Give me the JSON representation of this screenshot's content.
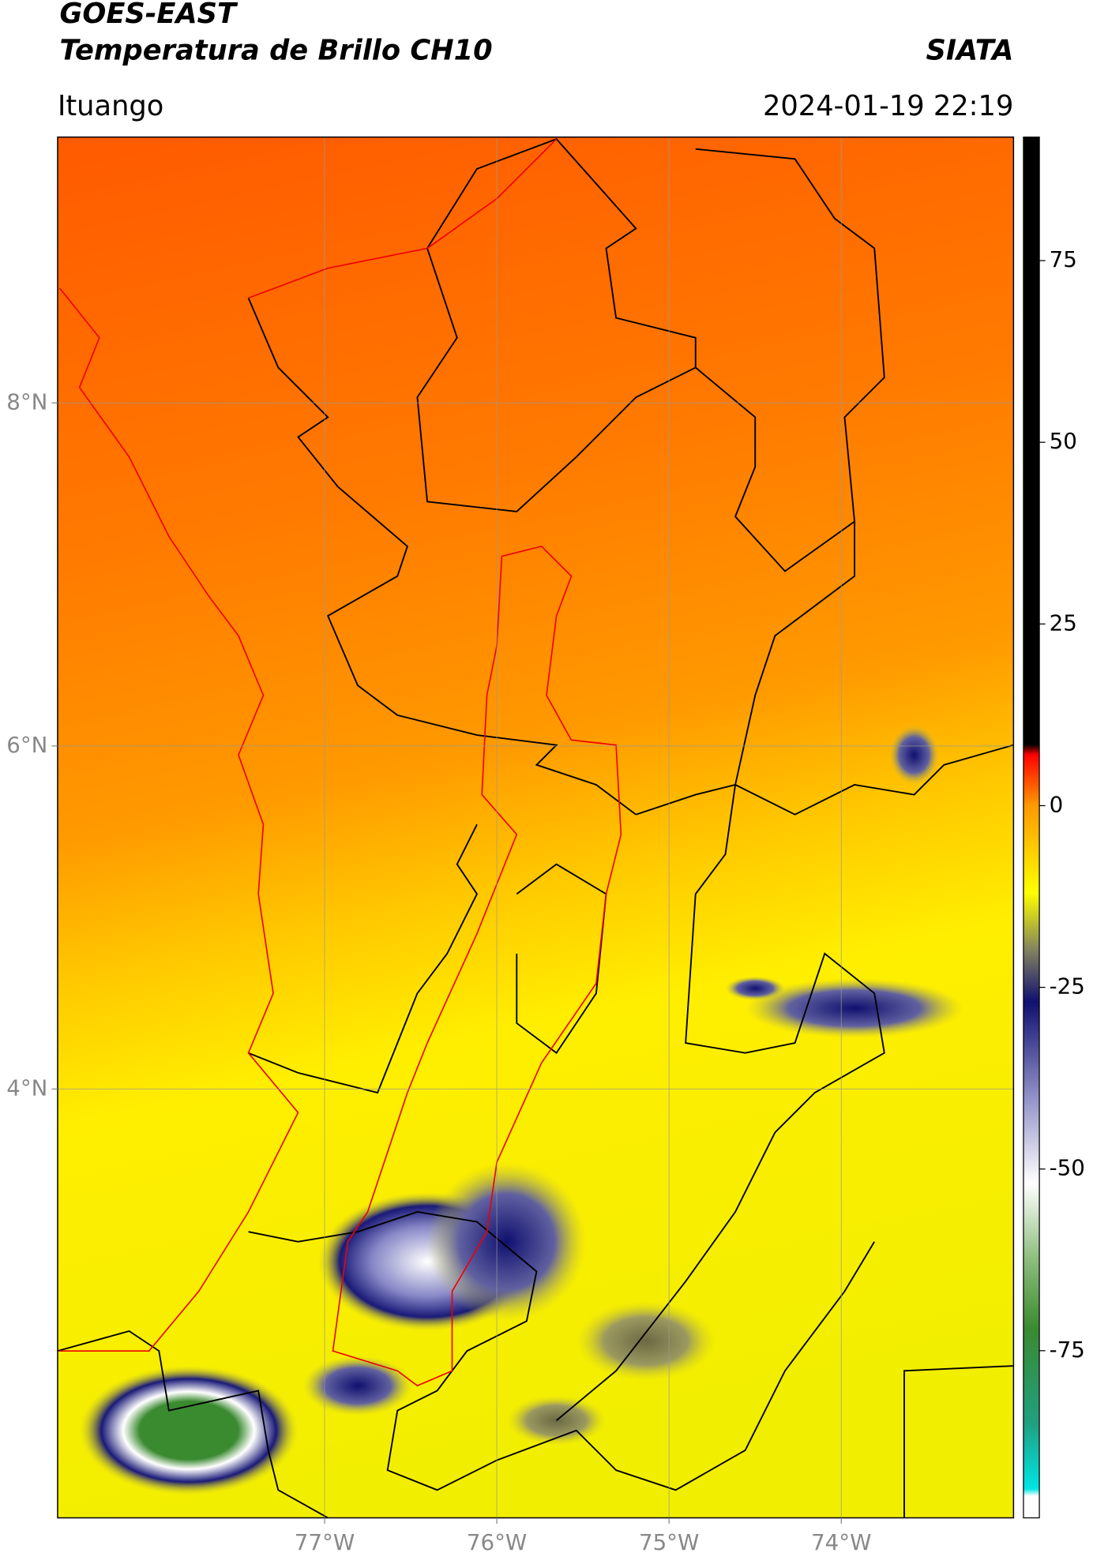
{
  "header": {
    "title": "GOES-EAST",
    "subtitle": "Temperatura de Brillo CH10",
    "source": "SIATA",
    "location": "Ituango",
    "datetime": "2024-01-19 22:19"
  },
  "map": {
    "xlim": [
      -78.55,
      -73.0
    ],
    "ylim": [
      1.5,
      9.55
    ],
    "xticks": [
      {
        "value": -77,
        "label": "77°W"
      },
      {
        "value": -76,
        "label": "76°W"
      },
      {
        "value": -75,
        "label": "75°W"
      },
      {
        "value": -74,
        "label": "74°W"
      }
    ],
    "yticks": [
      {
        "value": 8,
        "label": "8°N"
      },
      {
        "value": 6,
        "label": "6°N"
      },
      {
        "value": 4,
        "label": "4°N"
      }
    ],
    "grid": true
  },
  "colorbar": {
    "lim": [
      -98,
      92
    ],
    "ticks": [
      75,
      50,
      25,
      0,
      -25,
      -50,
      -75
    ],
    "stops": [
      {
        "value": -98,
        "color": "#ffffff"
      },
      {
        "value": -95,
        "color": "#ffffff"
      },
      {
        "value": -94,
        "color": "#00e5e5"
      },
      {
        "value": -85,
        "color": "#20a080"
      },
      {
        "value": -72,
        "color": "#3a8a30"
      },
      {
        "value": -62,
        "color": "#90c080"
      },
      {
        "value": -52,
        "color": "#ffffff"
      },
      {
        "value": -40,
        "color": "#9090c8"
      },
      {
        "value": -27,
        "color": "#101070"
      },
      {
        "value": -20,
        "color": "#808060"
      },
      {
        "value": -12,
        "color": "#ffff00"
      },
      {
        "value": 0,
        "color": "#ff9900"
      },
      {
        "value": 7,
        "color": "#ff0000"
      },
      {
        "value": 8.4,
        "color": "#000000"
      },
      {
        "value": 92,
        "color": "#000000"
      }
    ]
  }
}
